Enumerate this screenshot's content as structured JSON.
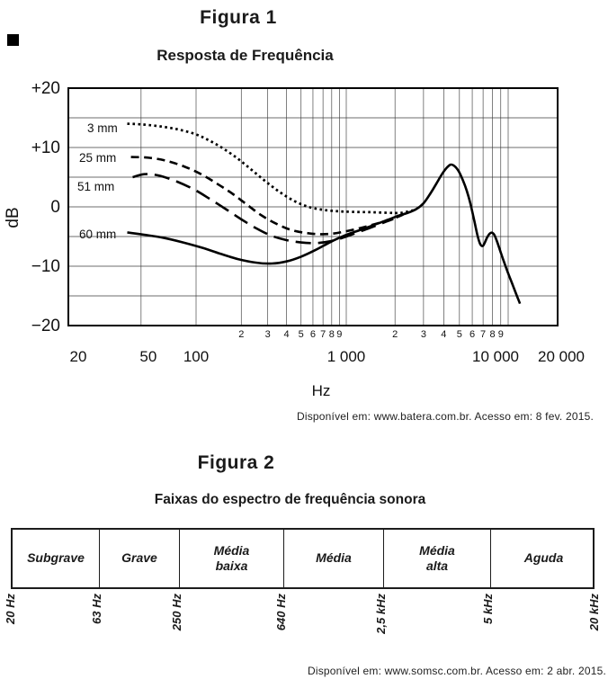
{
  "figure1": {
    "title": "Figura 1",
    "subtitle": "Resposta de Frequência",
    "attribution": "Disponível em: www.batera.com.br. Acesso em: 8 fev. 2015.",
    "ylabel": "dB",
    "xlabel": "Hz"
  },
  "figure2": {
    "title": "Figura 2",
    "subtitle": "Faixas do espectro de frequência sonora",
    "attribution": "Disponível em: www.somsc.com.br. Acesso em: 2 abr. 2015."
  },
  "chart_data": [
    {
      "type": "line",
      "title": "Resposta de Frequência",
      "xlabel": "Hz",
      "ylabel": "dB",
      "x_scale": "log",
      "xlim": [
        20,
        20000
      ],
      "ylim": [
        -20,
        20
      ],
      "grid": "on",
      "y_ticks": [
        {
          "label": "+20",
          "db": 20
        },
        {
          "label": "+10",
          "db": 10
        },
        {
          "label": "0",
          "db": 0
        },
        {
          "label": "−10",
          "db": -10
        },
        {
          "label": "−20",
          "db": -20
        }
      ],
      "grid_dbs": [
        15,
        10,
        5,
        0,
        -5,
        -10,
        -15
      ],
      "grid_freqs": [
        50,
        100,
        200,
        300,
        400,
        500,
        600,
        700,
        800,
        900,
        1000,
        2000,
        3000,
        4000,
        5000,
        6000,
        7000,
        8000,
        9000,
        10000
      ],
      "x_major_ticks": [
        {
          "label": "20",
          "f": 20
        },
        {
          "label": "50",
          "f": 50
        },
        {
          "label": "100",
          "f": 100
        },
        {
          "label": "1 000",
          "f": 1000
        },
        {
          "label": "10 000",
          "f": 10000
        },
        {
          "label": "20 000",
          "f": 20000
        }
      ],
      "x_minor_digits": [
        "2",
        "3",
        "4",
        "5",
        "6",
        "7",
        "8",
        "9"
      ],
      "x_minor_decades": [
        100,
        1000
      ],
      "series": [
        {
          "name": "3 mm",
          "style": "dotted",
          "points": [
            [
              42,
              14
            ],
            [
              50,
              13.9
            ],
            [
              62,
              13.6
            ],
            [
              78,
              13.1
            ],
            [
              98,
              12.3
            ],
            [
              122,
              11.2
            ],
            [
              152,
              9.8
            ],
            [
              190,
              8.1
            ],
            [
              235,
              6.2
            ],
            [
              290,
              4.3
            ],
            [
              360,
              2.5
            ],
            [
              450,
              1.0
            ],
            [
              560,
              0.0
            ],
            [
              700,
              -0.5
            ],
            [
              880,
              -0.75
            ],
            [
              1100,
              -0.85
            ],
            [
              1400,
              -0.9
            ],
            [
              1800,
              -1.0
            ],
            [
              2200,
              -1.0
            ],
            [
              2700,
              -0.45
            ]
          ]
        },
        {
          "name": "25 mm",
          "style": "dashed",
          "points": [
            [
              44,
              8.4
            ],
            [
              54,
              8.3
            ],
            [
              68,
              7.8
            ],
            [
              86,
              6.8
            ],
            [
              108,
              5.5
            ],
            [
              138,
              3.9
            ],
            [
              175,
              2.2
            ],
            [
              220,
              0.3
            ],
            [
              275,
              -1.5
            ],
            [
              345,
              -2.9
            ],
            [
              430,
              -3.9
            ],
            [
              540,
              -4.4
            ],
            [
              670,
              -4.6
            ],
            [
              820,
              -4.5
            ],
            [
              1000,
              -4.1
            ],
            [
              1250,
              -3.5
            ],
            [
              1550,
              -2.8
            ],
            [
              1900,
              -2.1
            ],
            [
              2250,
              -1.3
            ]
          ]
        },
        {
          "name": "51 mm",
          "style": "longdash",
          "points": [
            [
              45,
              5.0
            ],
            [
              52,
              5.5
            ],
            [
              62,
              5.3
            ],
            [
              78,
              4.3
            ],
            [
              98,
              2.9
            ],
            [
              124,
              1.3
            ],
            [
              158,
              -0.4
            ],
            [
              200,
              -2.1
            ],
            [
              255,
              -3.7
            ],
            [
              320,
              -4.9
            ],
            [
              400,
              -5.6
            ],
            [
              500,
              -6.0
            ],
            [
              630,
              -6.1
            ],
            [
              780,
              -5.8
            ],
            [
              950,
              -5.2
            ],
            [
              1150,
              -4.4
            ],
            [
              1400,
              -3.55
            ],
            [
              1650,
              -2.8
            ],
            [
              1950,
              -2.05
            ]
          ]
        },
        {
          "name": "60 mm",
          "style": "solid",
          "points": [
            [
              42,
              -4.3
            ],
            [
              52,
              -4.7
            ],
            [
              66,
              -5.2
            ],
            [
              85,
              -6.0
            ],
            [
              110,
              -6.9
            ],
            [
              145,
              -7.9
            ],
            [
              190,
              -8.8
            ],
            [
              250,
              -9.4
            ],
            [
              320,
              -9.55
            ],
            [
              400,
              -9.2
            ],
            [
              500,
              -8.4
            ],
            [
              620,
              -7.3
            ],
            [
              760,
              -6.1
            ],
            [
              900,
              -5.2
            ],
            [
              1050,
              -4.5
            ],
            [
              1250,
              -3.8
            ],
            [
              1500,
              -3.0
            ],
            [
              1800,
              -2.2
            ],
            [
              2100,
              -1.5
            ],
            [
              2400,
              -1.0
            ],
            [
              2700,
              -0.4
            ],
            [
              3000,
              0.6
            ],
            [
              3300,
              2.2
            ],
            [
              3600,
              3.9
            ],
            [
              3900,
              5.5
            ],
            [
              4150,
              6.5
            ],
            [
              4400,
              7.1
            ],
            [
              4650,
              6.9
            ],
            [
              4950,
              6.0
            ],
            [
              5250,
              4.5
            ],
            [
              5550,
              2.7
            ],
            [
              5850,
              0.5
            ],
            [
              6150,
              -2.1
            ],
            [
              6450,
              -4.7
            ],
            [
              6700,
              -6.2
            ],
            [
              6950,
              -6.6
            ],
            [
              7150,
              -6.1
            ],
            [
              7400,
              -5.2
            ],
            [
              7700,
              -4.5
            ],
            [
              7950,
              -4.35
            ],
            [
              8200,
              -4.7
            ],
            [
              8500,
              -5.7
            ],
            [
              8900,
              -7.3
            ],
            [
              9400,
              -9.2
            ],
            [
              10000,
              -11.2
            ],
            [
              10700,
              -13.3
            ],
            [
              11300,
              -15.0
            ],
            [
              11800,
              -16.3
            ]
          ]
        }
      ]
    },
    {
      "type": "table",
      "title": "Faixas do espectro de frequência sonora",
      "bands": [
        {
          "label": "Subgrave"
        },
        {
          "label": "Grave"
        },
        {
          "label": "Média\nbaixa"
        },
        {
          "label": "Média"
        },
        {
          "label": "Média\nalta"
        },
        {
          "label": "Aguda"
        }
      ],
      "boundaries_hz": [
        "20 Hz",
        "63 Hz",
        "250 Hz",
        "640 Hz",
        "2,5 kHz",
        "5 kHz",
        "20 kHz"
      ]
    }
  ]
}
